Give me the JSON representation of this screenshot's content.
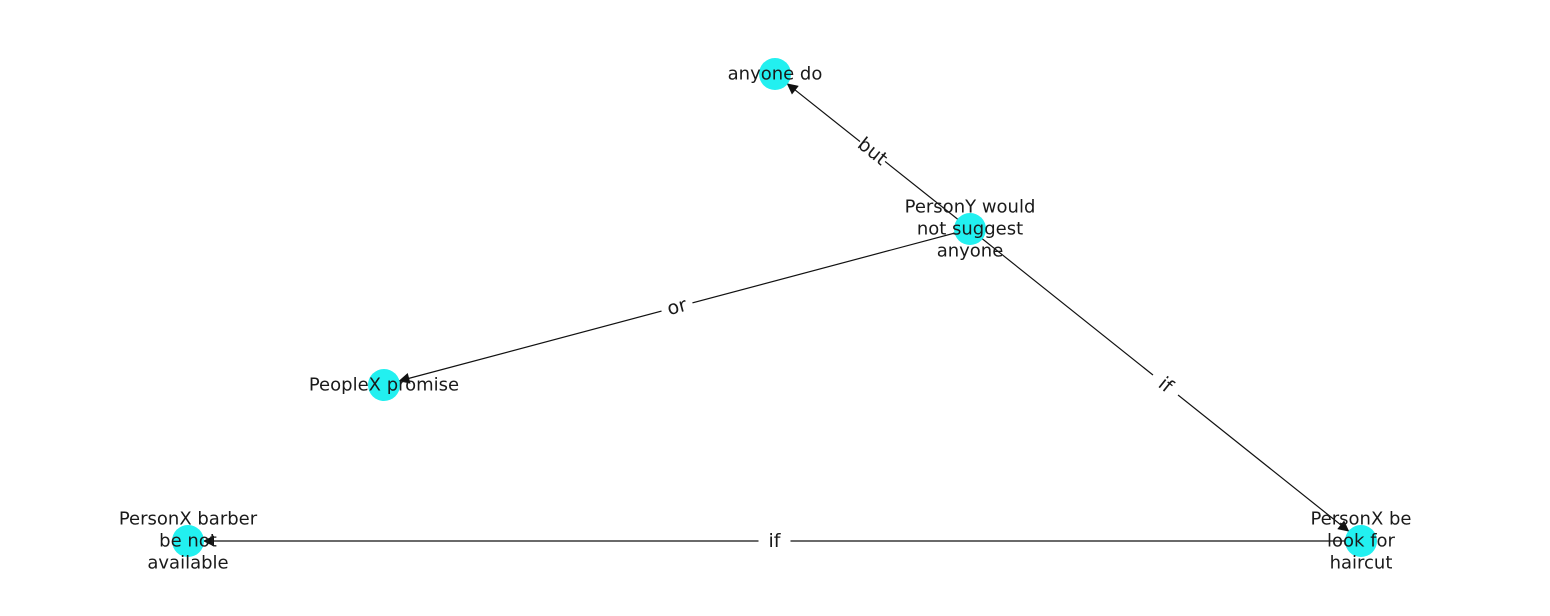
{
  "colors": {
    "node": "#22f0f0",
    "edge": "#111111",
    "text": "#1a1a1a"
  },
  "nodes": [
    {
      "id": "person_y",
      "lines": [
        "PersonY would",
        "not suggest",
        "anyone"
      ]
    },
    {
      "id": "anyone_do",
      "lines": [
        "anyone do"
      ]
    },
    {
      "id": "peoplex_promise",
      "lines": [
        "PeopleX promise"
      ]
    },
    {
      "id": "personx_barber",
      "lines": [
        "PersonX barber",
        "be not",
        "available"
      ]
    },
    {
      "id": "personx_haircut",
      "lines": [
        "PersonX be",
        "look for",
        "haircut"
      ]
    }
  ],
  "edges": [
    {
      "source": "person_y",
      "target": "anyone_do",
      "label": "but"
    },
    {
      "source": "person_y",
      "target": "peoplex_promise",
      "label": "or"
    },
    {
      "source": "person_y",
      "target": "personx_haircut",
      "label": "if"
    },
    {
      "source": "personx_haircut",
      "target": "personx_barber",
      "label": "if"
    }
  ]
}
